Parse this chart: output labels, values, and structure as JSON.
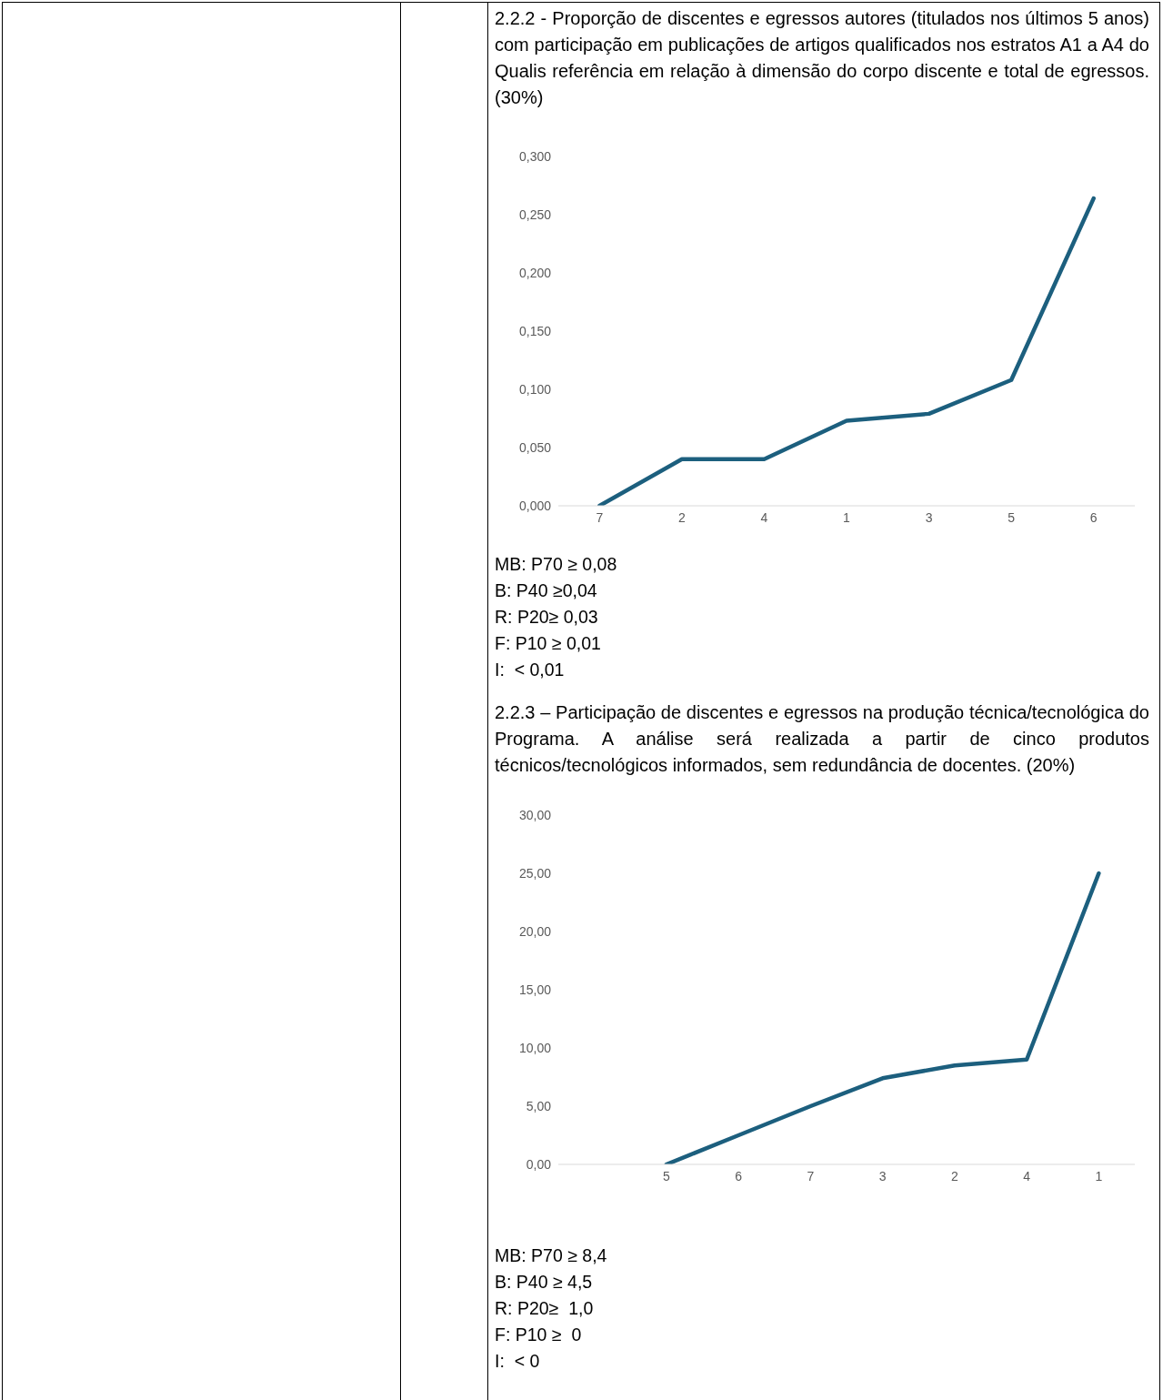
{
  "chart_data": [
    {
      "type": "line",
      "title": "2.2.2 - Proporção de discentes e egressos autores (titulados nos últimos 5 anos) com participação em publicações de artigos qualificados nos estratos A1 a A4 do Qualis referência em relação à dimensão do corpo discente e total de egressos. (30%)",
      "categories": [
        "7",
        "2",
        "4",
        "1",
        "3",
        "5",
        "6"
      ],
      "series": [
        {
          "color": "#1c5f7e",
          "values": [
            0,
            0.04,
            0.04,
            0.073,
            0.079,
            0.108,
            0.264
          ]
        }
      ],
      "ylim": [
        0,
        0.3
      ],
      "yticks": [
        {
          "value": 0,
          "label": "0,000"
        },
        {
          "value": 0.05,
          "label": "0,050"
        },
        {
          "value": 0.1,
          "label": "0,100"
        },
        {
          "value": 0.15,
          "label": "0,150"
        },
        {
          "value": 0.2,
          "label": "0,200"
        },
        {
          "value": 0.25,
          "label": "0,250"
        },
        {
          "value": 0.3,
          "label": "0,300"
        }
      ],
      "grid": false,
      "marker": "none",
      "line_style": "solid",
      "annotations": [
        "MB: P70 ≥ 0,08",
        "B: P40 ≥0,04",
        "R: P20≥ 0,03",
        "F: P10 ≥ 0,01",
        "I:  < 0,01"
      ]
    },
    {
      "type": "line",
      "title": "2.2.3 – Participação de discentes e egressos na produção técnica/tecnológica do Programa. A análise será realizada a partir de cinco produtos técnicos/tecnológicos informados, sem redundância de docentes. (20%)",
      "categories": [
        null,
        "5",
        "6",
        "7",
        "3",
        "2",
        "4",
        "1"
      ],
      "series": [
        {
          "color": "#1c5f7e",
          "values": [
            null,
            0,
            2.5,
            5.0,
            7.4,
            8.5,
            9.0,
            25.0
          ]
        }
      ],
      "ylim": [
        0,
        30
      ],
      "yticks": [
        {
          "value": 0,
          "label": "0,00"
        },
        {
          "value": 5,
          "label": "5,00"
        },
        {
          "value": 10,
          "label": "10,00"
        },
        {
          "value": 15,
          "label": "15,00"
        },
        {
          "value": 20,
          "label": "20,00"
        },
        {
          "value": 25,
          "label": "25,00"
        },
        {
          "value": 30,
          "label": "30,00"
        }
      ],
      "grid": false,
      "marker": "none",
      "line_style": "solid",
      "annotations": [
        "MB: P70 ≥ 8,4",
        "B: P40 ≥ 4,5",
        "R: P20≥  1,0",
        "F: P10 ≥  0",
        "I:  < 0"
      ]
    }
  ]
}
